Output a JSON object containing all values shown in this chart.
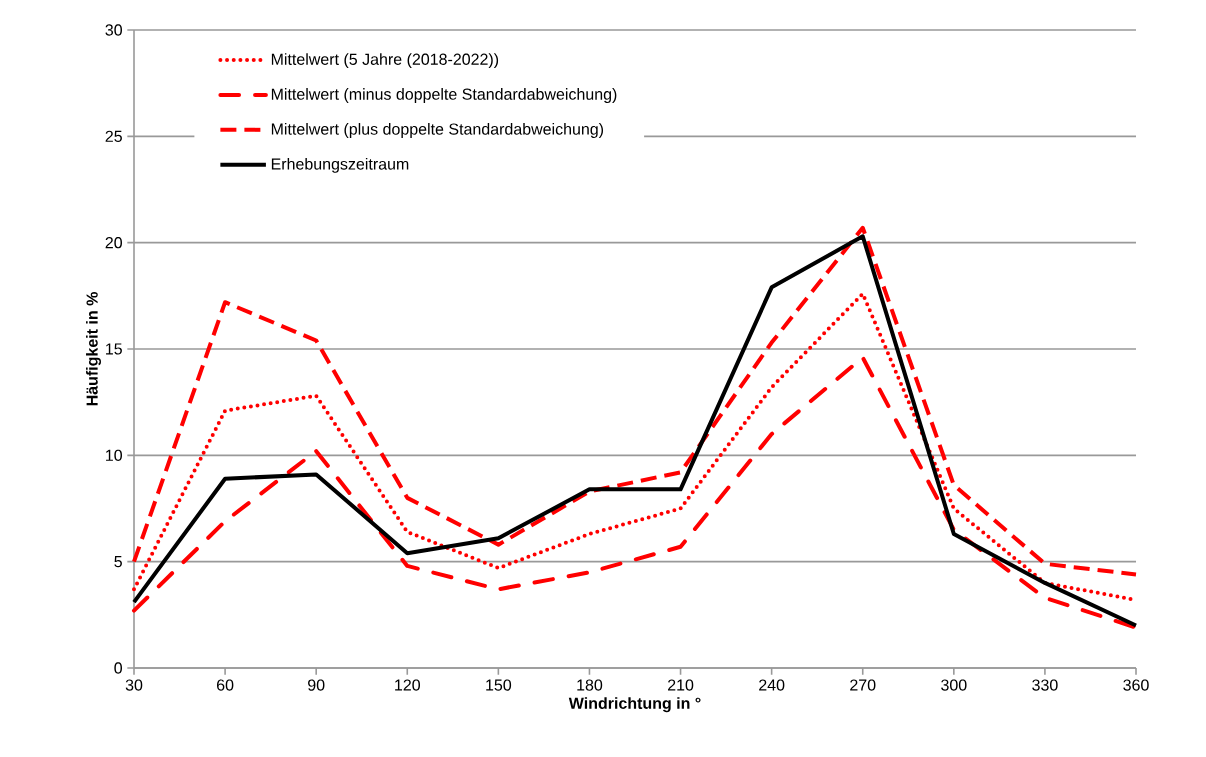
{
  "chart_data": {
    "type": "line",
    "xlabel": "Windrichtung in °",
    "ylabel": "Häufigkeit in %",
    "x": [
      30,
      60,
      90,
      120,
      150,
      180,
      210,
      240,
      270,
      300,
      330,
      360
    ],
    "xlim": [
      30,
      360
    ],
    "xticks": [
      30,
      60,
      90,
      120,
      150,
      180,
      210,
      240,
      270,
      300,
      330,
      360
    ],
    "ylim": [
      0,
      30
    ],
    "yticks": [
      0,
      5,
      10,
      15,
      20,
      25,
      30
    ],
    "grid": "y",
    "legend": "top left",
    "marker": "none",
    "series": [
      {
        "name": "Mittelwert (5 Jahre (2018-2022))",
        "color": "#ff0000",
        "line_style": "dotted",
        "values": [
          3.7,
          12.1,
          12.8,
          6.4,
          4.7,
          6.3,
          7.5,
          13.2,
          17.6,
          7.5,
          4.0,
          3.2
        ]
      },
      {
        "name": "Mittelwert (minus doppelte Standardabweichung)",
        "color": "#ff0000",
        "line_style": "dashdot",
        "values": [
          2.7,
          6.9,
          10.2,
          4.8,
          3.7,
          4.5,
          5.7,
          11.0,
          14.6,
          6.5,
          3.3,
          1.9
        ]
      },
      {
        "name": "Mittelwert (plus doppelte Standardabweichung)",
        "color": "#ff0000",
        "line_style": "dashed",
        "values": [
          5.0,
          17.2,
          15.4,
          8.0,
          5.8,
          8.3,
          9.2,
          15.3,
          20.7,
          8.6,
          4.9,
          4.4
        ]
      },
      {
        "name": "Erhebungszeitraum",
        "color": "#000000",
        "line_style": "solid",
        "values": [
          3.1,
          8.9,
          9.1,
          5.4,
          6.1,
          8.4,
          8.4,
          17.9,
          20.3,
          6.3,
          4.0,
          2.0
        ]
      }
    ]
  }
}
